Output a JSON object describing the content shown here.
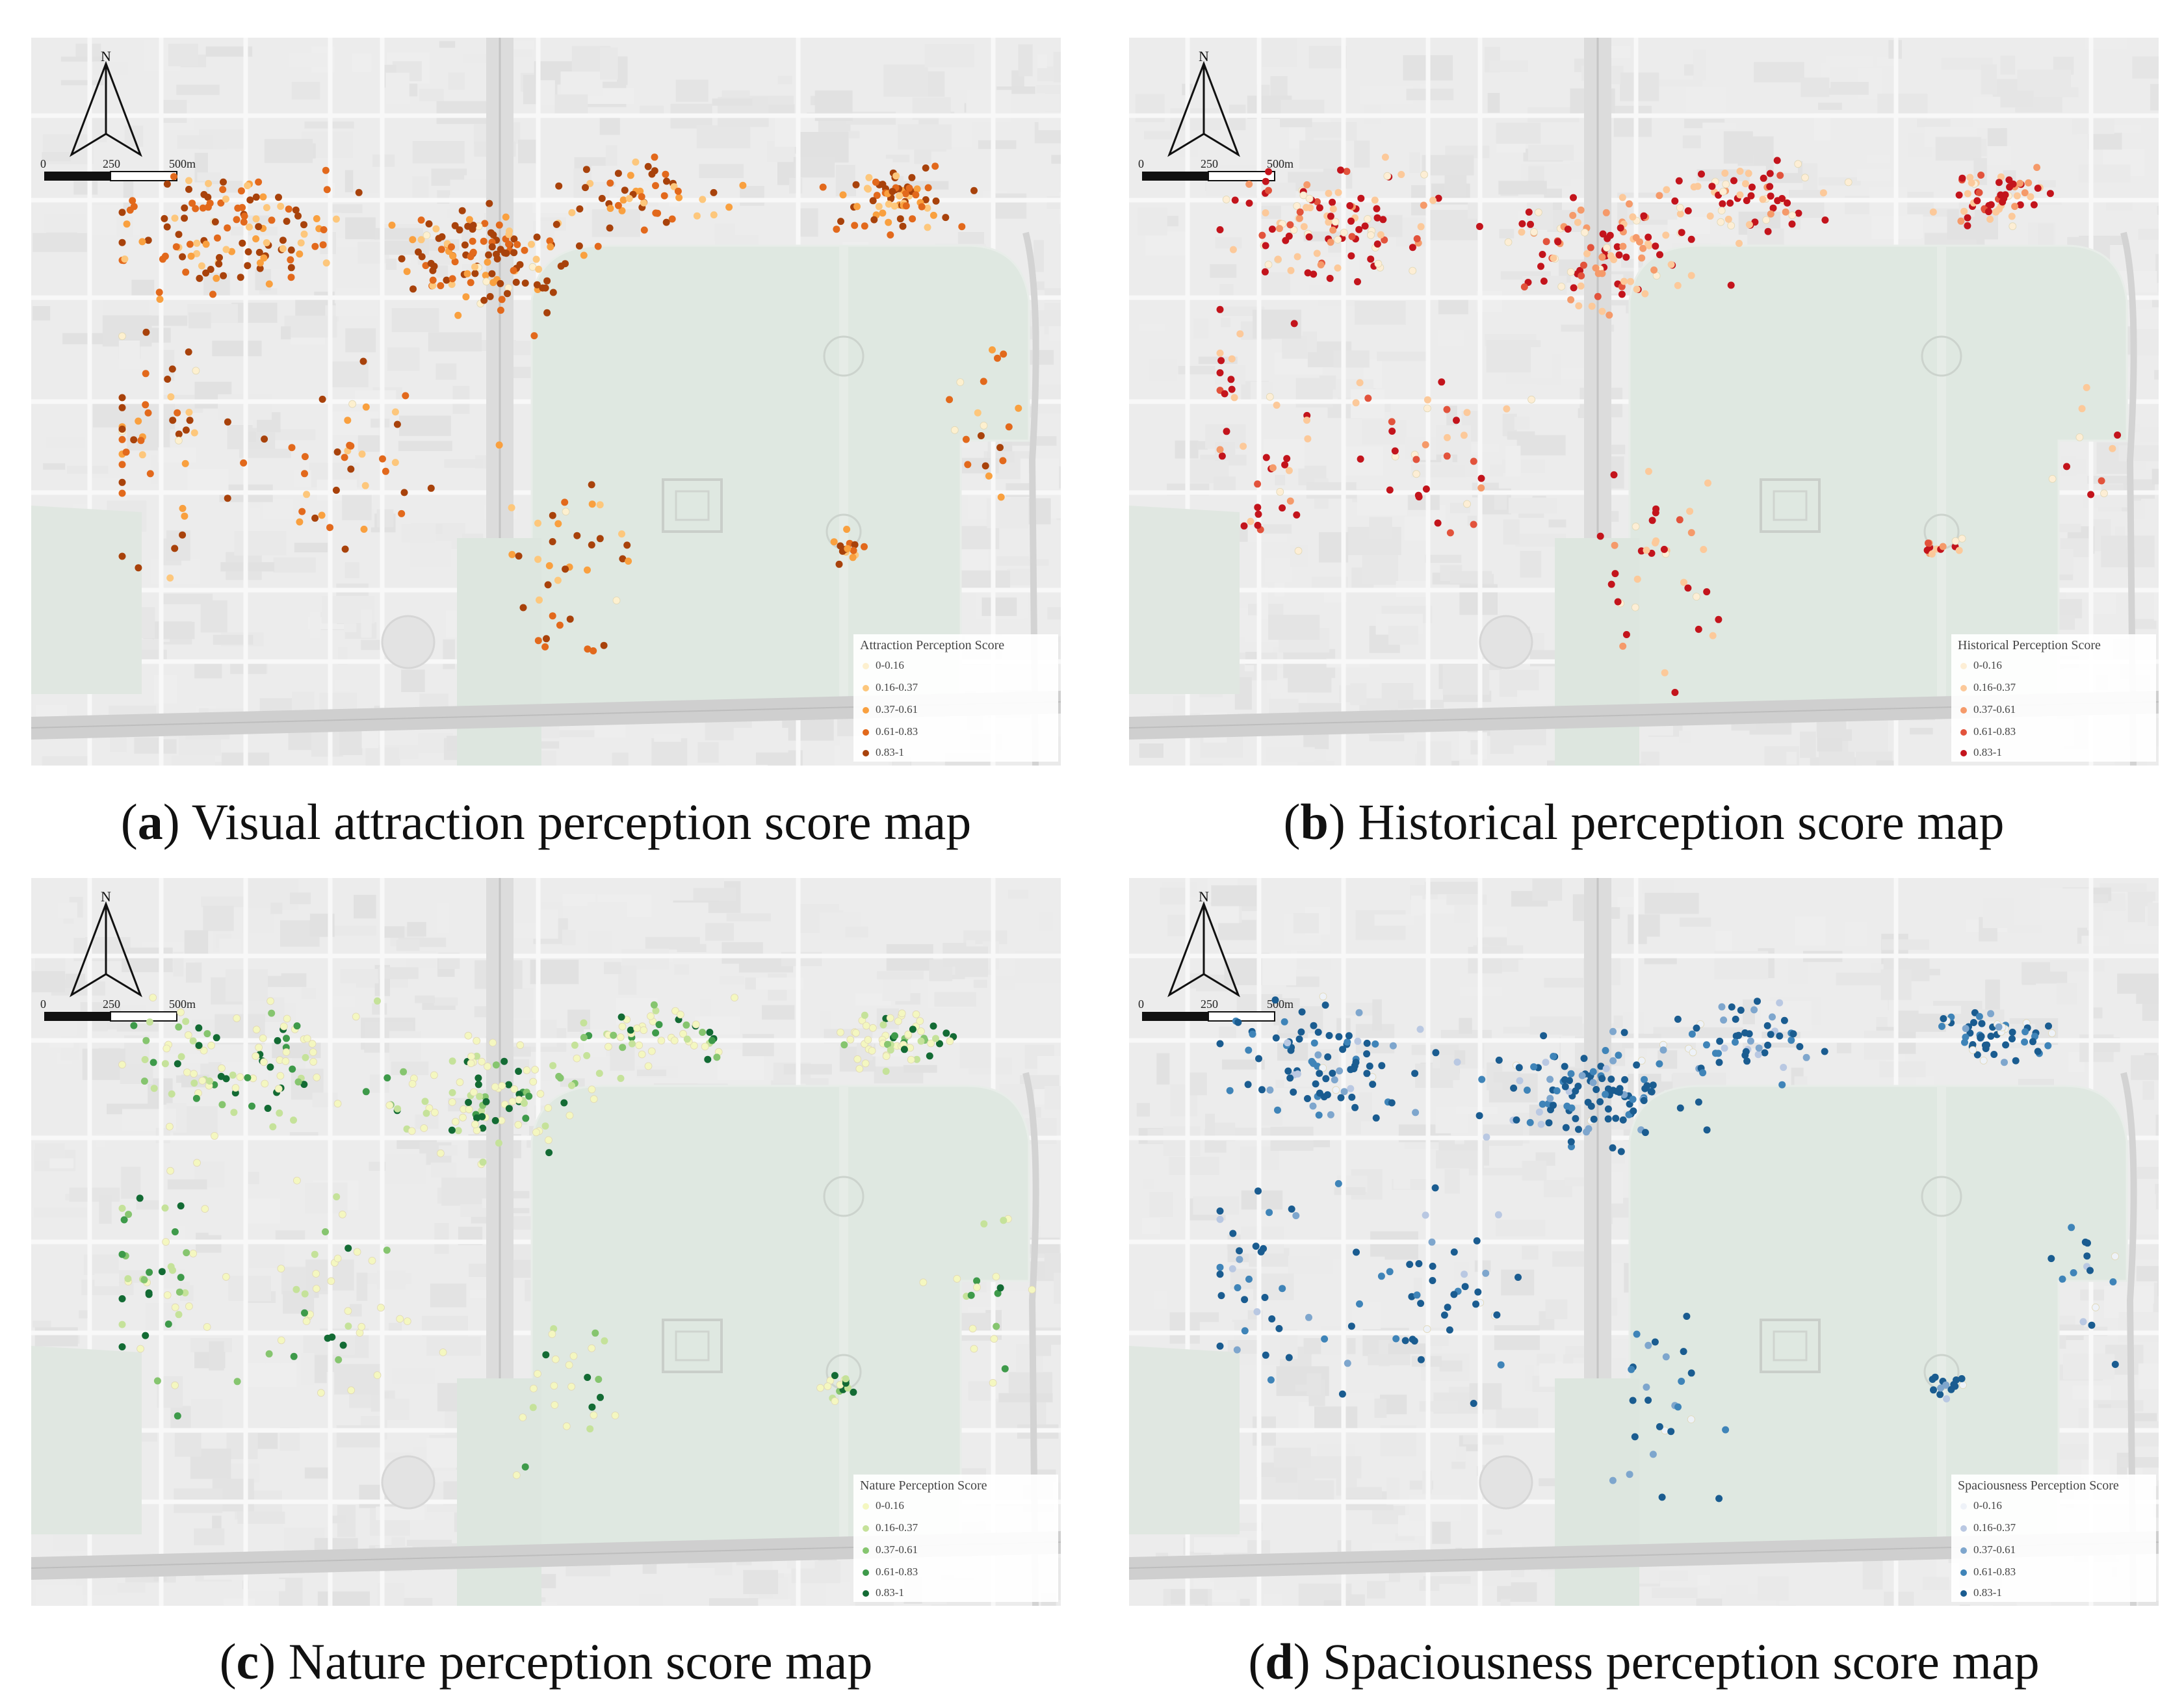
{
  "panels": [
    {
      "id": "a",
      "caption_letter": "a",
      "caption_text": "Visual attraction perception score map",
      "legend_title": "Attraction Perception Score",
      "classes": [
        "0-0.16",
        "0.16-0.37",
        "0.37-0.61",
        "0.61-0.83",
        "0.83-1"
      ],
      "colors": [
        "#fdf0cf",
        "#fdc77c",
        "#f9a03f",
        "#e2691c",
        "#a8420b"
      ]
    },
    {
      "id": "b",
      "caption_letter": "b",
      "caption_text": "Historical perception score map",
      "legend_title": "Historical Perception Score",
      "classes": [
        "0-0.16",
        "0.16-0.37",
        "0.37-0.61",
        "0.61-0.83",
        "0.83-1"
      ],
      "colors": [
        "#fdeed5",
        "#fcc99a",
        "#f59a6a",
        "#e2533c",
        "#c3141c"
      ]
    },
    {
      "id": "c",
      "caption_letter": "c",
      "caption_text": "Nature perception score map",
      "legend_title": "Nature Perception Score",
      "classes": [
        "0-0.16",
        "0.16-0.37",
        "0.37-0.61",
        "0.61-0.83",
        "0.83-1"
      ],
      "colors": [
        "#f4f7c0",
        "#c5e29a",
        "#86c56f",
        "#3e9a4a",
        "#136b34"
      ]
    },
    {
      "id": "d",
      "caption_letter": "d",
      "caption_text": "Spaciousness perception score map",
      "legend_title": "Spaciousness Perception Score",
      "classes": [
        "0-0.16",
        "0.16-0.37",
        "0.37-0.61",
        "0.61-0.83",
        "0.83-1"
      ],
      "colors": [
        "#eef2f8",
        "#b9c8e2",
        "#7ea6cd",
        "#3f84b8",
        "#1a5c90"
      ]
    }
  ],
  "north_label": "N",
  "scale_labels": [
    "0",
    "250",
    "500m"
  ],
  "point_counts": {
    "a": 520,
    "b": 470,
    "c": 460,
    "d": 440
  }
}
